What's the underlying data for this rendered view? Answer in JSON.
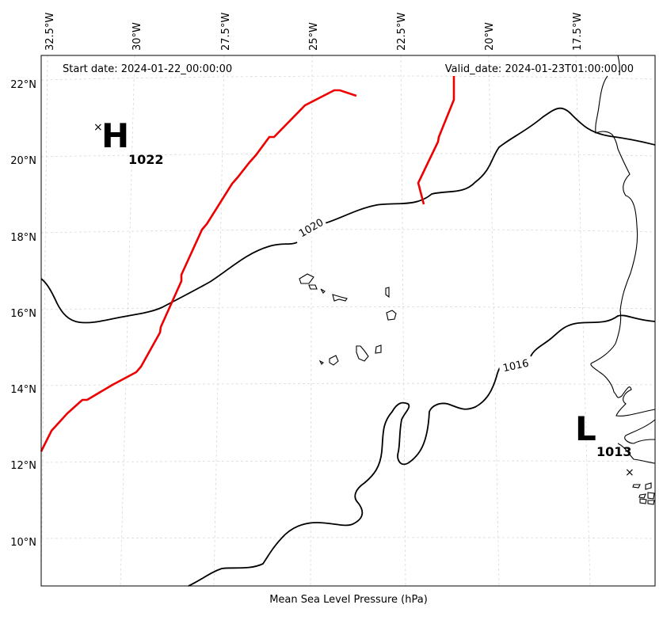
{
  "header": {
    "start_date": "Start date: 2024-01-22_00:00:00",
    "valid_date": "Valid_date: 2024-01-23T01:00:00.00"
  },
  "footer": {
    "caption": "Mean Sea Level Pressure (hPa)"
  },
  "axes": {
    "lon_ticks": [
      "32.5°W",
      "30°W",
      "27.5°W",
      "25°W",
      "22.5°W",
      "20°W",
      "17.5°W"
    ],
    "lat_ticks": [
      "22°N",
      "20°N",
      "18°N",
      "16°N",
      "14°N",
      "12°N",
      "10°N"
    ]
  },
  "contours": {
    "label_1020": "1020",
    "label_1016": "1016"
  },
  "pressure_centers": {
    "high": {
      "symbol": "H",
      "value": "1022",
      "marker": "×"
    },
    "low": {
      "symbol": "L",
      "value": "1013",
      "marker": "×"
    }
  },
  "colors": {
    "front": "#ee0000",
    "contour": "#000000",
    "grid": "#d9d9d9"
  }
}
